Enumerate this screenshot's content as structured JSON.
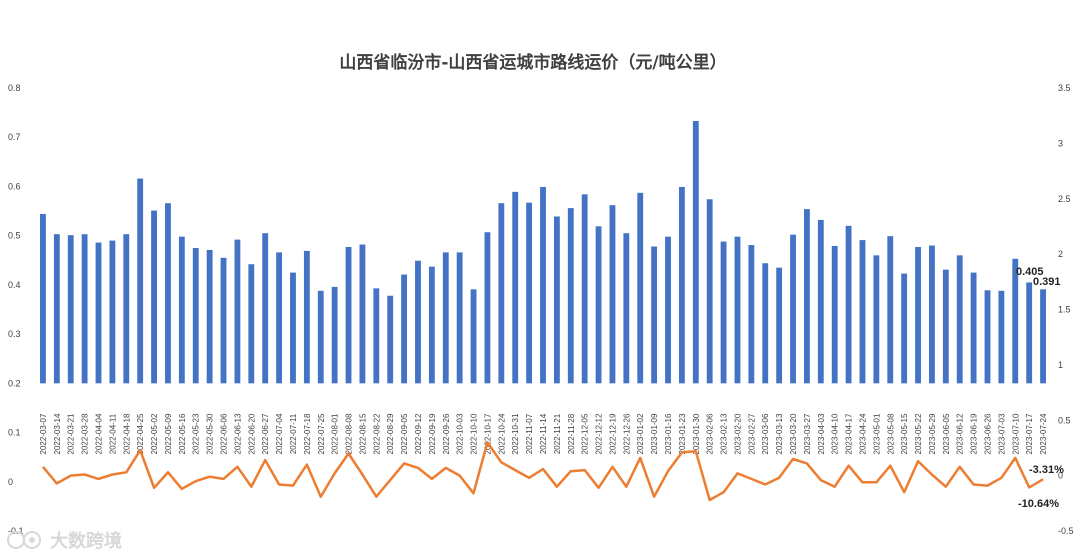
{
  "chart_data": {
    "type": "bar",
    "title": "山西省临汾市-山西省运城市路线运价（元/吨公里）",
    "xlabel": "",
    "ylabel": "",
    "categories": [
      "2022-03-07",
      "2022-03-14",
      "2022-03-21",
      "2022-03-28",
      "2022-04-04",
      "2022-04-11",
      "2022-04-18",
      "2022-04-25",
      "2022-05-02",
      "2022-05-09",
      "2022-05-16",
      "2022-05-23",
      "2022-05-30",
      "2022-06-06",
      "2022-06-13",
      "2022-06-20",
      "2022-06-27",
      "2022-07-04",
      "2022-07-11",
      "2022-07-18",
      "2022-07-25",
      "2022-08-01",
      "2022-08-08",
      "2022-08-15",
      "2022-08-22",
      "2022-08-29",
      "2022-09-05",
      "2022-09-12",
      "2022-09-19",
      "2022-09-26",
      "2022-10-03",
      "2022-10-10",
      "2022-10-17",
      "2022-10-24",
      "2022-10-31",
      "2022-11-07",
      "2022-11-14",
      "2022-11-21",
      "2022-11-28",
      "2022-12-05",
      "2022-12-12",
      "2022-12-19",
      "2022-12-26",
      "2023-01-02",
      "2023-01-09",
      "2023-01-16",
      "2023-01-23",
      "2023-01-30",
      "2023-02-06",
      "2023-02-13",
      "2023-02-20",
      "2023-02-27",
      "2023-03-06",
      "2023-03-13",
      "2023-03-20",
      "2023-03-27",
      "2023-04-03",
      "2023-04-10",
      "2023-04-17",
      "2023-04-24",
      "2023-05-01",
      "2023-05-08",
      "2023-05-15",
      "2023-05-22",
      "2023-05-29",
      "2023-06-05",
      "2023-06-12",
      "2023-06-19",
      "2023-06-26",
      "2023-07-03",
      "2023-07-10",
      "2023-07-17",
      "2023-07-24"
    ],
    "series": [
      {
        "axis": "left",
        "type": "bar",
        "color": "#4472c4",
        "values": [
          0.544,
          0.503,
          0.501,
          0.503,
          0.486,
          0.49,
          0.503,
          0.616,
          0.551,
          0.566,
          0.498,
          0.475,
          0.471,
          0.455,
          0.492,
          0.442,
          0.505,
          0.466,
          0.425,
          0.469,
          0.388,
          0.396,
          0.477,
          0.482,
          0.393,
          0.378,
          0.421,
          0.449,
          0.437,
          0.466,
          0.466,
          0.391,
          0.507,
          0.566,
          0.589,
          0.567,
          0.599,
          0.539,
          0.556,
          0.584,
          0.519,
          0.562,
          0.505,
          0.587,
          0.478,
          0.498,
          0.599,
          0.733,
          0.574,
          0.488,
          0.498,
          0.481,
          0.444,
          0.435,
          0.502,
          0.554,
          0.532,
          0.479,
          0.52,
          0.491,
          0.46,
          0.499,
          0.423,
          0.477,
          0.48,
          0.431,
          0.46,
          0.425,
          0.389,
          0.388,
          0.453,
          0.405,
          0.391
        ]
      },
      {
        "axis": "right",
        "type": "line",
        "color": "#ed7d31",
        "values": [
          0.08,
          -0.07,
          0.0,
          0.01,
          -0.03,
          0.01,
          0.03,
          0.23,
          -0.11,
          0.03,
          -0.12,
          -0.05,
          -0.01,
          -0.03,
          0.08,
          -0.1,
          0.14,
          -0.08,
          -0.09,
          0.1,
          -0.19,
          0.02,
          0.2,
          0.01,
          -0.19,
          -0.04,
          0.11,
          0.07,
          -0.03,
          0.07,
          0.0,
          -0.16,
          0.3,
          0.12,
          0.05,
          -0.02,
          0.06,
          -0.1,
          0.04,
          0.05,
          -0.11,
          0.08,
          -0.1,
          0.16,
          -0.19,
          0.04,
          0.21,
          0.22,
          -0.22,
          -0.15,
          0.02,
          -0.03,
          -0.08,
          -0.02,
          0.15,
          0.11,
          -0.04,
          -0.1,
          0.09,
          -0.06,
          -0.06,
          0.09,
          -0.15,
          0.13,
          0.01,
          -0.1,
          0.08,
          -0.08,
          -0.09,
          -0.02,
          0.16,
          -0.1064,
          -0.0331
        ]
      }
    ],
    "y_left": {
      "min": -0.1,
      "max": 0.8,
      "ticks": [
        "-0.1",
        "0",
        "0.1",
        "0.2",
        "0.3",
        "0.4",
        "0.5",
        "0.6",
        "0.7",
        "0.8"
      ]
    },
    "y_right": {
      "min": -0.5,
      "max": 3.5,
      "ticks": [
        "-0.5",
        "0",
        "0.5",
        "1",
        "1.5",
        "2",
        "2.5",
        "3",
        "3.5"
      ]
    },
    "annotations": {
      "bar_last2": "0.405",
      "bar_last": "0.391",
      "pct_last2": "-10.64%",
      "pct_last": "-3.31%"
    },
    "grid": false,
    "legend": "none"
  },
  "watermark": {
    "text": "大数跨境",
    "logo": "eye-logo"
  }
}
